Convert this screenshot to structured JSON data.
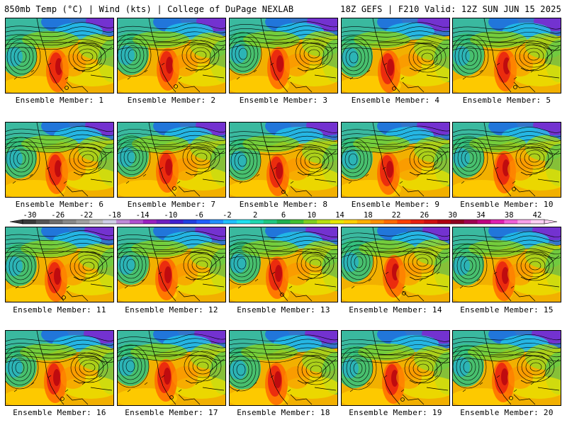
{
  "header": {
    "left": "850mb Temp (°C) | Wind (kts) | College of DuPage NEXLAB",
    "right": "18Z GEFS | F210 Valid: 12Z SUN JUN 15 2025"
  },
  "panels": [
    {
      "label": "Ensemble Member: 1"
    },
    {
      "label": "Ensemble Member: 2"
    },
    {
      "label": "Ensemble Member: 3"
    },
    {
      "label": "Ensemble Member: 4"
    },
    {
      "label": "Ensemble Member: 5"
    },
    {
      "label": "Ensemble Member: 6"
    },
    {
      "label": "Ensemble Member: 7"
    },
    {
      "label": "Ensemble Member: 8"
    },
    {
      "label": "Ensemble Member: 9"
    },
    {
      "label": "Ensemble Member: 10"
    },
    {
      "label": "Ensemble Member: 11"
    },
    {
      "label": "Ensemble Member: 12"
    },
    {
      "label": "Ensemble Member: 13"
    },
    {
      "label": "Ensemble Member: 14"
    },
    {
      "label": "Ensemble Member: 15"
    },
    {
      "label": "Ensemble Member: 16"
    },
    {
      "label": "Ensemble Member: 17"
    },
    {
      "label": "Ensemble Member: 18"
    },
    {
      "label": "Ensemble Member: 19"
    },
    {
      "label": "Ensemble Member: 20"
    }
  ],
  "colorbar": {
    "ticks": [
      "-30",
      "-26",
      "-22",
      "-18",
      "-14",
      "-10",
      "-6",
      "-2",
      "2",
      "6",
      "10",
      "14",
      "18",
      "22",
      "26",
      "30",
      "34",
      "38",
      "42"
    ],
    "colors": [
      "#3a3a3a",
      "#555555",
      "#6e6e6e",
      "#888888",
      "#a0a0a0",
      "#bcbcbc",
      "#cfcfe8",
      "#c08ad8",
      "#b050d0",
      "#9a20c0",
      "#7020c0",
      "#4020d0",
      "#2040e0",
      "#2060ff",
      "#2090ff",
      "#20c0ff",
      "#20e0f0",
      "#20d8b0",
      "#20c880",
      "#20b050",
      "#40c030",
      "#80d020",
      "#b8e010",
      "#e8e800",
      "#ffd000",
      "#ffb000",
      "#ff9000",
      "#ff6a00",
      "#ff4000",
      "#e82010",
      "#d01010",
      "#b00010",
      "#900020",
      "#a00050",
      "#c00080",
      "#e020b0",
      "#f060d8",
      "#f8a0e8",
      "#fcd0f4"
    ]
  }
}
